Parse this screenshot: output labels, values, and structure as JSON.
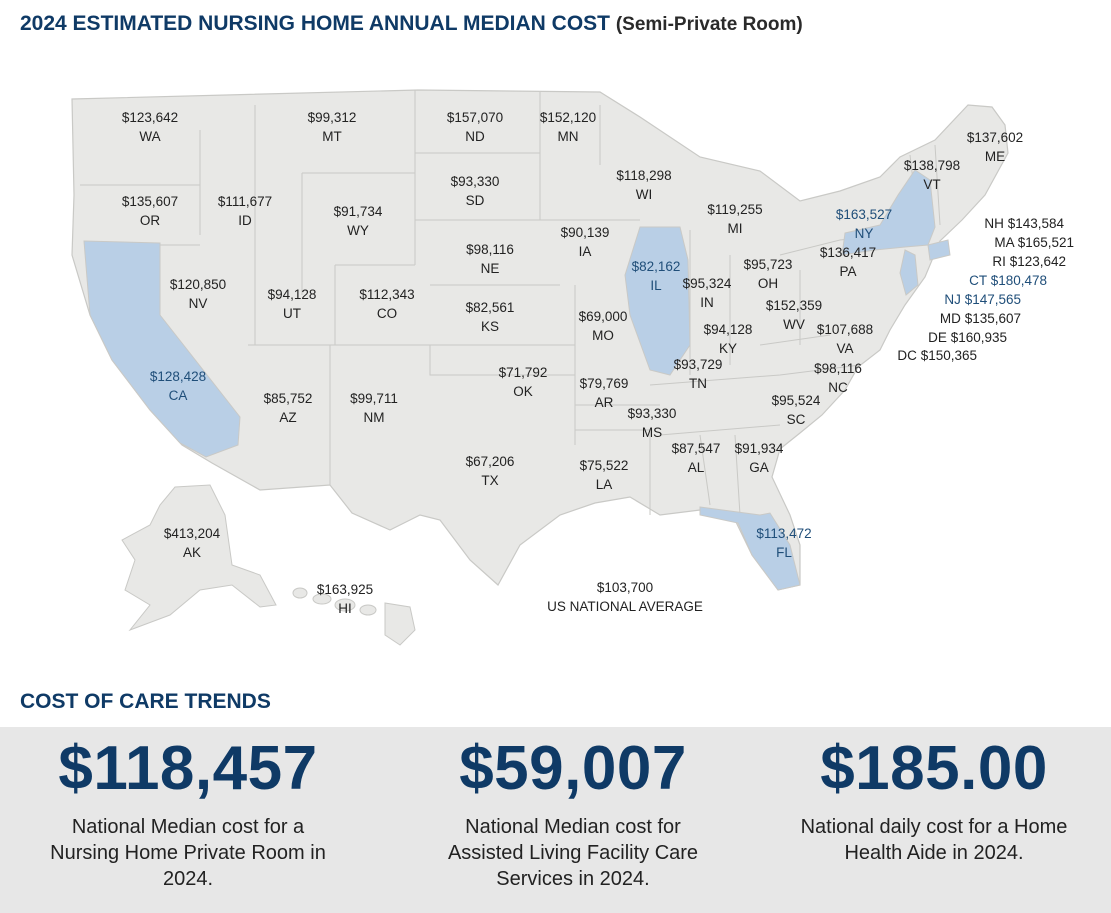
{
  "header": {
    "title": "2024 ESTIMATED NURSING HOME ANNUAL MEDIAN COST",
    "subtitle": "(Semi-Private Room)"
  },
  "colors": {
    "title_navy": "#0f3a66",
    "map_fill": "#e8e8e6",
    "map_border": "#c9c9c6",
    "highlight_fill": "#b9cfe6",
    "highlight_text": "#1f4e79",
    "panel_bg": "#e7e7e7"
  },
  "map": {
    "states": [
      {
        "abbr": "WA",
        "cost": "$123,642"
      },
      {
        "abbr": "MT",
        "cost": "$99,312"
      },
      {
        "abbr": "ND",
        "cost": "$157,070"
      },
      {
        "abbr": "MN",
        "cost": "$152,120"
      },
      {
        "abbr": "ME",
        "cost": "$137,602"
      },
      {
        "abbr": "VT",
        "cost": "$138,798"
      },
      {
        "abbr": "WI",
        "cost": "$118,298"
      },
      {
        "abbr": "SD",
        "cost": "$93,330"
      },
      {
        "abbr": "OR",
        "cost": "$135,607"
      },
      {
        "abbr": "ID",
        "cost": "$111,677"
      },
      {
        "abbr": "WY",
        "cost": "$91,734"
      },
      {
        "abbr": "MI",
        "cost": "$119,255"
      },
      {
        "abbr": "NY",
        "cost": "$163,527",
        "highlight": true
      },
      {
        "abbr": "IA",
        "cost": "$90,139"
      },
      {
        "abbr": "NE",
        "cost": "$98,116"
      },
      {
        "abbr": "PA",
        "cost": "$136,417"
      },
      {
        "abbr": "IL",
        "cost": "$82,162",
        "highlight": true
      },
      {
        "abbr": "OH",
        "cost": "$95,723"
      },
      {
        "abbr": "NV",
        "cost": "$120,850"
      },
      {
        "abbr": "UT",
        "cost": "$94,128"
      },
      {
        "abbr": "CO",
        "cost": "$112,343"
      },
      {
        "abbr": "IN",
        "cost": "$95,324"
      },
      {
        "abbr": "KS",
        "cost": "$82,561"
      },
      {
        "abbr": "WV",
        "cost": "$152,359"
      },
      {
        "abbr": "MO",
        "cost": "$69,000"
      },
      {
        "abbr": "KY",
        "cost": "$94,128"
      },
      {
        "abbr": "VA",
        "cost": "$107,688"
      },
      {
        "abbr": "CA",
        "cost": "$128,428",
        "highlight": true
      },
      {
        "abbr": "TN",
        "cost": "$93,729"
      },
      {
        "abbr": "NC",
        "cost": "$98,116"
      },
      {
        "abbr": "OK",
        "cost": "$71,792"
      },
      {
        "abbr": "AR",
        "cost": "$79,769"
      },
      {
        "abbr": "AZ",
        "cost": "$85,752"
      },
      {
        "abbr": "NM",
        "cost": "$99,711"
      },
      {
        "abbr": "SC",
        "cost": "$95,524"
      },
      {
        "abbr": "MS",
        "cost": "$93,330"
      },
      {
        "abbr": "AL",
        "cost": "$87,547"
      },
      {
        "abbr": "GA",
        "cost": "$91,934"
      },
      {
        "abbr": "TX",
        "cost": "$67,206"
      },
      {
        "abbr": "LA",
        "cost": "$75,522"
      },
      {
        "abbr": "FL",
        "cost": "$113,472",
        "highlight": true
      },
      {
        "abbr": "AK",
        "cost": "$413,204"
      },
      {
        "abbr": "HI",
        "cost": "$163,925"
      }
    ],
    "small_states": [
      {
        "abbr": "NH",
        "cost": "$143,584"
      },
      {
        "abbr": "MA",
        "cost": "$165,521"
      },
      {
        "abbr": "RI",
        "cost": "$123,642"
      },
      {
        "abbr": "CT",
        "cost": "$180,478",
        "highlight": true
      },
      {
        "abbr": "NJ",
        "cost": "$147,565",
        "highlight": true
      },
      {
        "abbr": "MD",
        "cost": "$135,607"
      },
      {
        "abbr": "DE",
        "cost": "$160,935"
      },
      {
        "abbr": "DC",
        "cost": "$150,365"
      }
    ],
    "national_average": {
      "value": "$103,700",
      "label": "US NATIONAL AVERAGE"
    }
  },
  "trends": {
    "title": "COST OF CARE TRENDS",
    "items": [
      {
        "value": "$118,457",
        "desc": "National Median cost for a Nursing Home Private Room in 2024."
      },
      {
        "value": "$59,007",
        "desc": "National Median cost for Assisted Living Facility Care Services in 2024."
      },
      {
        "value": "$185.00",
        "desc": "National daily cost for a Home Health Aide in 2024."
      }
    ]
  }
}
